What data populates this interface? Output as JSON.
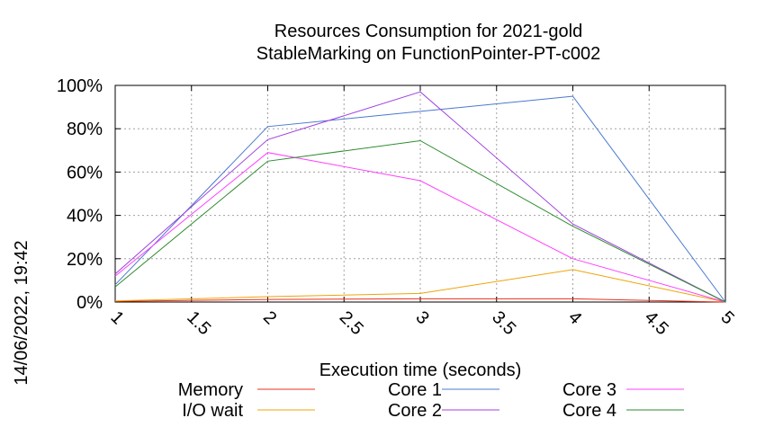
{
  "chart_data": {
    "type": "line",
    "title_line1": "Resources Consumption for 2021-gold",
    "title_line2": "StableMarking on FunctionPointer-PT-c002",
    "xlabel": "Execution time (seconds)",
    "ylabel": "",
    "timestamp": "14/06/2022, 19:42",
    "xlim": [
      1,
      5
    ],
    "ylim": [
      0,
      100
    ],
    "x_ticks": [
      "1",
      "1.5",
      "2",
      "2.5",
      "3",
      "3.5",
      "4",
      "4.5",
      "5"
    ],
    "y_ticks": [
      "0%",
      "20%",
      "40%",
      "60%",
      "80%",
      "100%"
    ],
    "grid": true,
    "legend_position": "bottom",
    "x": [
      1,
      2,
      3,
      4,
      5
    ],
    "series": [
      {
        "name": "Memory",
        "color": "#e8311f",
        "values": [
          0.3,
          1.2,
          1.5,
          1.5,
          0
        ]
      },
      {
        "name": "I/O wait",
        "color": "#f0a30a",
        "values": [
          0.5,
          2.5,
          4,
          15,
          0
        ]
      },
      {
        "name": "Core 1",
        "color": "#4a78d0",
        "values": [
          8,
          81,
          88,
          95,
          0
        ]
      },
      {
        "name": "Core 2",
        "color": "#a040e0",
        "values": [
          13,
          75,
          97,
          36,
          0
        ]
      },
      {
        "name": "Core 3",
        "color": "#ff40ff",
        "values": [
          12,
          69,
          56,
          20,
          0
        ]
      },
      {
        "name": "Core 4",
        "color": "#2e8b2e",
        "values": [
          7,
          65,
          74.5,
          35,
          0
        ]
      }
    ]
  }
}
